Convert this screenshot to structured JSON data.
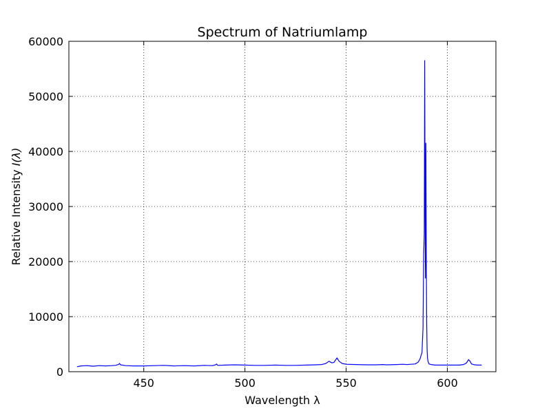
{
  "chart_data": {
    "type": "line",
    "title": "Spectrum of Natriumlamp",
    "xlabel": "Wavelength λ",
    "ylabel_prefix": "Relative Intensity ",
    "ylabel_symbol": "I(λ)",
    "xlim": [
      413,
      624
    ],
    "ylim": [
      0,
      60000
    ],
    "x_ticks": [
      450,
      500,
      550,
      600
    ],
    "x_tick_labels": [
      "450",
      "500",
      "550",
      "600"
    ],
    "y_ticks": [
      0,
      10000,
      20000,
      30000,
      40000,
      50000,
      60000
    ],
    "y_tick_labels": [
      "0",
      "10000",
      "20000",
      "30000",
      "40000",
      "50000",
      "60000"
    ],
    "grid": true,
    "color": "#0000ff",
    "series": [
      {
        "x": [
          417,
          419,
          422,
          425,
          428,
          431,
          434,
          436,
          437.5,
          438,
          438.5,
          441,
          445,
          450,
          455,
          460,
          465,
          470,
          475,
          480,
          484,
          485.5,
          486,
          486.5,
          490,
          495,
          500,
          505,
          510,
          515,
          520,
          525,
          530,
          535,
          538,
          540,
          541.5,
          543,
          544,
          545.5,
          546.5,
          548,
          550,
          555,
          560,
          565,
          568,
          570,
          575,
          578,
          580,
          582,
          584,
          585.5,
          586.5,
          587.5,
          588,
          588.3,
          588.6,
          588.8,
          589.0,
          589.2,
          589.4,
          589.6,
          589.8,
          590.0,
          590.2,
          590.5,
          591,
          592,
          594,
          597,
          600,
          603,
          606,
          608,
          609.5,
          610.5,
          611.2,
          612,
          613.5,
          615,
          617
        ],
        "y": [
          900,
          1050,
          1100,
          1000,
          1100,
          1050,
          1100,
          1150,
          1300,
          1500,
          1250,
          1100,
          1050,
          1050,
          1100,
          1150,
          1050,
          1100,
          1050,
          1150,
          1100,
          1250,
          1400,
          1150,
          1200,
          1250,
          1200,
          1150,
          1150,
          1200,
          1150,
          1150,
          1200,
          1250,
          1300,
          1500,
          1900,
          1600,
          1700,
          2500,
          1900,
          1500,
          1350,
          1300,
          1250,
          1250,
          1300,
          1250,
          1300,
          1350,
          1300,
          1350,
          1400,
          1700,
          2300,
          3500,
          8000,
          21000,
          25000,
          56500,
          30000,
          17000,
          41500,
          21000,
          9000,
          4000,
          2500,
          1800,
          1400,
          1300,
          1200,
          1200,
          1200,
          1200,
          1200,
          1300,
          1600,
          2200,
          1900,
          1400,
          1250,
          1200,
          1200
        ]
      }
    ]
  }
}
